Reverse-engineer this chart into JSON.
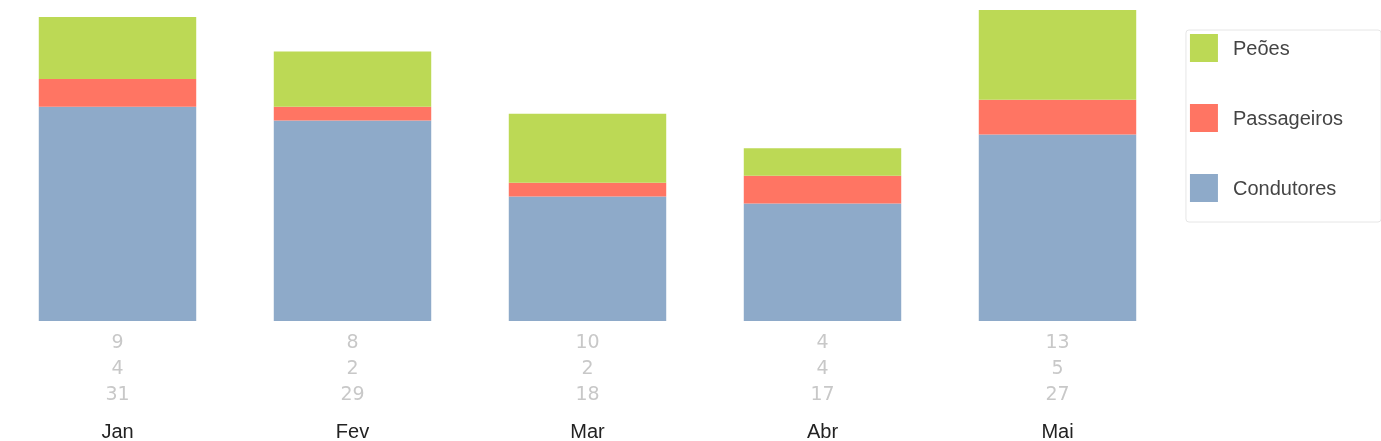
{
  "chart_data": {
    "type": "bar",
    "stacked": true,
    "data_labels": true,
    "legend": "top right",
    "categories": [
      "Jan",
      "Fev",
      "Mar",
      "Abr",
      "Mai"
    ],
    "series": [
      {
        "name": "Condutores",
        "color": "#8eaac9",
        "values": [
          31,
          29,
          18,
          17,
          27
        ]
      },
      {
        "name": "Passageiros",
        "color": "#ff7563",
        "values": [
          4,
          2,
          2,
          4,
          5
        ]
      },
      {
        "name": "Peões",
        "color": "#bcd955",
        "values": [
          9,
          8,
          10,
          4,
          13
        ]
      }
    ]
  }
}
